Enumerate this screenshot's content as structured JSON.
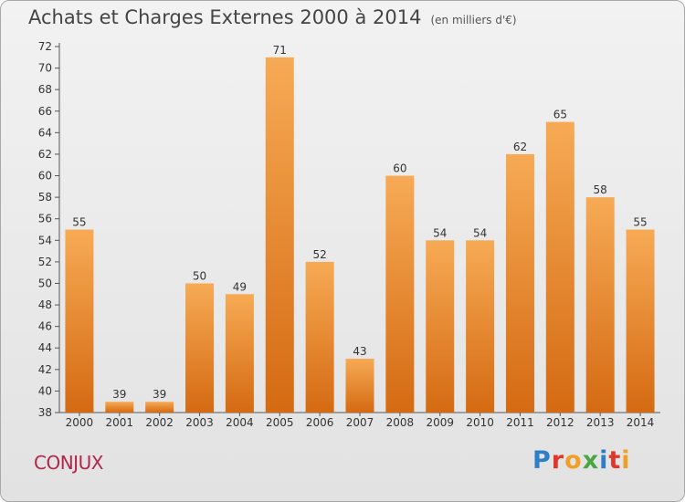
{
  "title": "Achats et Charges Externes 2000 à 2014",
  "units": "(en milliers d'€)",
  "town": "CONJUX",
  "logo": [
    "P",
    "r",
    "o",
    "x",
    "i",
    "t",
    "i"
  ],
  "colors": {
    "bar_light": "#f7aa55",
    "bar_dark": "#d46a12",
    "logo": [
      "#2f7fc7",
      "#e1372b",
      "#f0a028",
      "#4aa640",
      "#2f7fc7",
      "#e1372b",
      "#f0a028"
    ]
  },
  "chart_data": {
    "type": "bar",
    "title": "Achats et Charges Externes 2000 à 2014",
    "ylabel": "",
    "xlabel": "",
    "categories": [
      "2000",
      "2001",
      "2002",
      "2003",
      "2004",
      "2005",
      "2006",
      "2007",
      "2008",
      "2009",
      "2010",
      "2011",
      "2012",
      "2013",
      "2014"
    ],
    "values": [
      55,
      39,
      39,
      50,
      49,
      71,
      52,
      43,
      60,
      54,
      54,
      62,
      65,
      58,
      55
    ],
    "ylim": [
      38,
      72
    ],
    "yticks": [
      38,
      40,
      42,
      44,
      46,
      48,
      50,
      52,
      54,
      56,
      58,
      60,
      62,
      64,
      66,
      68,
      70,
      72
    ],
    "grid": false,
    "legend": "none"
  }
}
